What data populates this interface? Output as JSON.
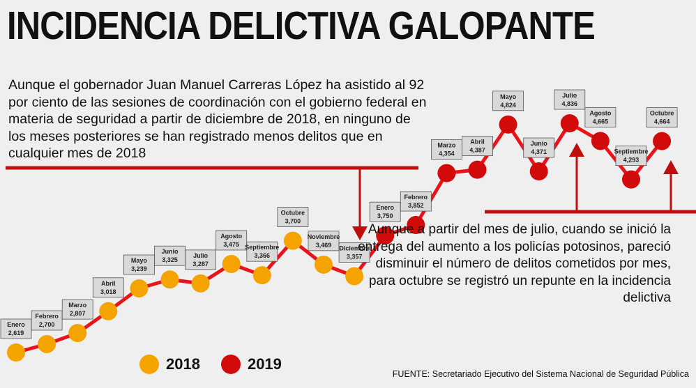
{
  "title": "INCIDENCIA DELICTIVA GALOPANTE",
  "note_left": "Aunque el gobernador Juan Manuel Carreras López ha asistido al 92 por ciento de las sesiones de coordinación con el gobierno federal en materia de seguridad a partir de diciembre de 2018, en ninguno de los meses posteriores se han registrado menos delitos que en cualquier mes de 2018",
  "note_right": "Aunque a partir del mes de julio, cuando se inició la entrega del aumento a los policías potosinos, pareció disminuir el número de delitos cometidos por mes, para octubre se registró un repunte en la incidencia delictiva",
  "source": "FUENTE: Secretariado Ejecutivo del Sistema Nacional de Seguridad Pública",
  "colors": {
    "line": "#e8141b",
    "y2018": "#f5a300",
    "y2019": "#d10a0a",
    "arrow": "#c00d0d"
  },
  "legend": [
    {
      "label": "2018",
      "color": "#f5a300"
    },
    {
      "label": "2019",
      "color": "#d10a0a"
    }
  ],
  "chart_data": {
    "type": "line",
    "x": [
      "Enero",
      "Febrero",
      "Marzo",
      "Abril",
      "Mayo",
      "Junio",
      "Julio",
      "Agosto",
      "Septiembre",
      "Octubre",
      "Noviembre",
      "Diciembre",
      "Enero",
      "Febrero",
      "Marzo",
      "Abril",
      "Mayo",
      "Junio",
      "Julio",
      "Agosto",
      "Septiembre",
      "Octubre"
    ],
    "values": [
      2619,
      2700,
      2807,
      3018,
      3239,
      3325,
      3287,
      3475,
      3366,
      3700,
      3469,
      3357,
      3750,
      3852,
      4354,
      4387,
      4824,
      4371,
      4836,
      4665,
      4293,
      4664
    ],
    "labels": [
      "2,619",
      "2,700",
      "2,807",
      "3,018",
      "3,239",
      "3,325",
      "3,287",
      "3,475",
      "3,366",
      "3,700",
      "3,469",
      "3,357",
      "3,750",
      "3,852",
      "4,354",
      "4,387",
      "4,824",
      "4,371",
      "4,836",
      "4,665",
      "4,293",
      "4,664"
    ],
    "year": [
      "2018",
      "2018",
      "2018",
      "2018",
      "2018",
      "2018",
      "2018",
      "2018",
      "2018",
      "2018",
      "2018",
      "2018",
      "2019",
      "2019",
      "2019",
      "2019",
      "2019",
      "2019",
      "2019",
      "2019",
      "2019",
      "2019"
    ],
    "series": [
      {
        "name": "2018",
        "color": "#f5a300"
      },
      {
        "name": "2019",
        "color": "#d10a0a"
      }
    ],
    "grid": false,
    "legend_position": "bottom-left"
  }
}
